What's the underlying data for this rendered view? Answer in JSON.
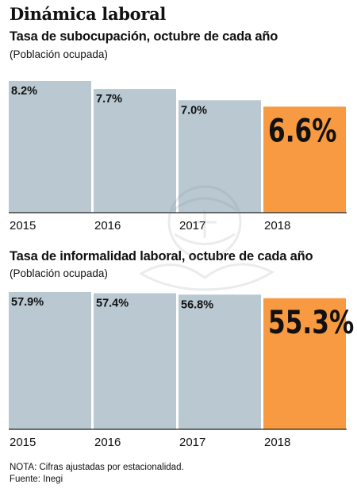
{
  "page": {
    "title": "Dinámica laboral",
    "note": "NOTA: Cifras ajustadas por estacionalidad.",
    "source": "Fuente: Inegi"
  },
  "colors": {
    "bar": "#b9c8d1",
    "highlight": "#f79a42",
    "baseline": "#222222",
    "text": "#111111"
  },
  "chart_data": [
    {
      "type": "bar",
      "title": "Tasa de subocupación, octubre de cada año",
      "subtitle": "(Población ocupada)",
      "categories": [
        "2015",
        "2016",
        "2017",
        "2018"
      ],
      "values": [
        8.2,
        7.7,
        7.0,
        6.6
      ],
      "labels": [
        "8.2%",
        "7.7%",
        "7.0%",
        "6.6%"
      ],
      "highlight_index": 3,
      "unit": "%",
      "grid": false,
      "legend": "none"
    },
    {
      "type": "bar",
      "title": "Tasa de informalidad laboral, octubre de cada año",
      "subtitle": "(Población ocupada)",
      "categories": [
        "2015",
        "2016",
        "2017",
        "2018"
      ],
      "values": [
        57.9,
        57.4,
        56.8,
        55.3
      ],
      "labels": [
        "57.9%",
        "57.4%",
        "56.8%",
        "55.3%"
      ],
      "highlight_index": 3,
      "unit": "%",
      "grid": false,
      "legend": "none"
    }
  ]
}
